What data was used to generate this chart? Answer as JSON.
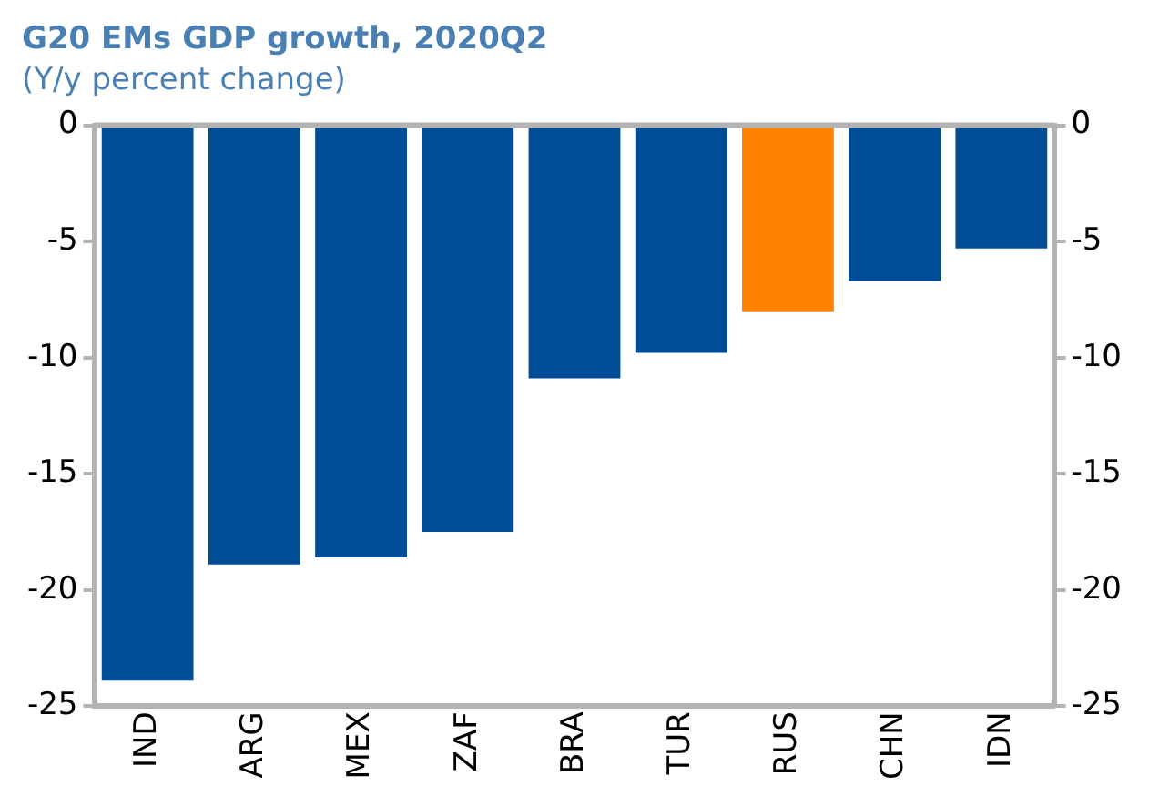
{
  "chart_data": {
    "type": "bar",
    "title": "G20 EMs GDP growth, 2020Q2",
    "subtitle": "(Y/y percent change)",
    "categories": [
      "IND",
      "ARG",
      "MEX",
      "ZAF",
      "BRA",
      "TUR",
      "RUS",
      "CHN",
      "IDN"
    ],
    "values": [
      -23.9,
      -18.9,
      -18.6,
      -17.5,
      -10.9,
      -9.8,
      -8.0,
      -6.7,
      -5.3
    ],
    "colors": [
      "#004c97",
      "#004c97",
      "#004c97",
      "#004c97",
      "#004c97",
      "#004c97",
      "#ff8200",
      "#004c97",
      "#004c97"
    ],
    "ylim": [
      -25,
      0
    ],
    "yticks": [
      0,
      -5,
      -10,
      -15,
      -20,
      -25
    ],
    "y2lim": [
      -25,
      0
    ],
    "y2ticks": [
      0,
      -5,
      -10,
      -15,
      -20,
      -25
    ],
    "grid": false,
    "legend": false
  }
}
